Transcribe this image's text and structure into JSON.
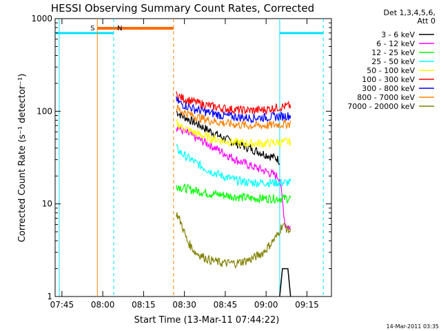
{
  "colors": {
    "background": "#ffffff",
    "axis": "#000000",
    "s_marker": "#ff8000",
    "n_marker": "#00e0ff",
    "night_bar": "#00e0ff",
    "saa_bar": "#ff6a00"
  },
  "chart_data": {
    "type": "line",
    "title": "HESSI Observing Summary Count Rates, Corrected",
    "xlabel": "Start Time (13-Mar-11 07:44:22)",
    "ylabel": "Corrected Count Rate (s⁻¹ detector⁻¹)",
    "x_ticks": [
      "07:45",
      "08:00",
      "08:15",
      "08:30",
      "08:45",
      "09:00",
      "09:15"
    ],
    "y_ticks": [
      "1",
      "10",
      "100",
      "1000"
    ],
    "y_scale": "log",
    "ylim": [
      1,
      1000
    ],
    "xlim_minutes_from_0744": [
      -1.5,
      100
    ],
    "grid": false,
    "legend_position": "right",
    "legend_header": [
      "Det 1,3,4,5,6,",
      "Att 0"
    ],
    "footer_date": "14-Mar-2011 03:35",
    "markers": [
      {
        "label": "S",
        "time_min": 14,
        "color": "#ff8000",
        "style": "solid"
      },
      {
        "label": "N",
        "time_min": 20,
        "color": "#00e0ff",
        "style": "dashed"
      }
    ],
    "extra_lines": [
      {
        "time_min": 42,
        "color": "#ff8000",
        "style": "dashed"
      },
      {
        "time_min": 81,
        "color": "#00e0ff",
        "style": "solid"
      },
      {
        "time_min": 97,
        "color": "#00e0ff",
        "style": "dashed"
      },
      {
        "time_min": 0,
        "color": "#00e0ff",
        "style": "solid"
      }
    ],
    "night_bars": [
      [
        -1.5,
        20
      ],
      [
        81,
        97
      ]
    ],
    "saa_bar": [
      14,
      42
    ],
    "series": [
      {
        "name": "3 - 6 keV",
        "color": "#000000",
        "x": [
          43,
          45,
          50,
          55,
          60,
          65,
          70,
          75,
          80,
          81
        ],
        "y": [
          100,
          90,
          75,
          62,
          52,
          45,
          40,
          35,
          31,
          29
        ]
      },
      {
        "name": "6 - 12 keV",
        "color": "#ff00ff",
        "x": [
          43,
          45,
          50,
          55,
          60,
          65,
          70,
          75,
          80,
          81,
          83,
          85
        ],
        "y": [
          68,
          62,
          52,
          44,
          36,
          30,
          26,
          23,
          20,
          19,
          6,
          5.5
        ]
      },
      {
        "name": "12 - 25 keV",
        "color": "#00ff00",
        "x": [
          43,
          45,
          50,
          55,
          60,
          65,
          70,
          75,
          80,
          85
        ],
        "y": [
          16,
          15,
          14,
          13,
          12.5,
          12,
          11.5,
          11.5,
          11.5,
          11.5
        ]
      },
      {
        "name": "25 - 50 keV",
        "color": "#00ffff",
        "x": [
          43,
          45,
          50,
          55,
          60,
          65,
          70,
          75,
          80,
          85
        ],
        "y": [
          40,
          35,
          28,
          23,
          20,
          18,
          17,
          17,
          17,
          17
        ]
      },
      {
        "name": "50 - 100 keV",
        "color": "#ffff00",
        "x": [
          43,
          45,
          50,
          55,
          60,
          65,
          70,
          75,
          80,
          85
        ],
        "y": [
          75,
          68,
          58,
          52,
          48,
          46,
          45,
          45,
          46,
          47
        ]
      },
      {
        "name": "100 - 300 keV",
        "color": "#ff0000",
        "x": [
          43,
          45,
          50,
          55,
          60,
          65,
          70,
          75,
          80,
          85
        ],
        "y": [
          150,
          140,
          125,
          115,
          108,
          104,
          102,
          104,
          110,
          115
        ]
      },
      {
        "name": "300 - 800 keV",
        "color": "#0000ff",
        "x": [
          43,
          45,
          50,
          55,
          60,
          65,
          70,
          75,
          80,
          85
        ],
        "y": [
          130,
          120,
          105,
          97,
          90,
          87,
          85,
          86,
          88,
          90
        ]
      },
      {
        "name": "800 - 7000 keV",
        "color": "#ff8000",
        "x": [
          43,
          45,
          50,
          55,
          60,
          65,
          70,
          75,
          80,
          85
        ],
        "y": [
          110,
          100,
          88,
          80,
          75,
          72,
          70,
          70,
          72,
          74
        ]
      },
      {
        "name": "7000 - 20000 keV",
        "color": "#808000",
        "x": [
          43,
          45,
          47,
          50,
          55,
          60,
          65,
          70,
          75,
          80,
          82,
          85
        ],
        "y": [
          8,
          6,
          4,
          3,
          2.5,
          2.3,
          2.3,
          2.5,
          3,
          4.5,
          6,
          5
        ]
      }
    ],
    "extra_traces": [
      {
        "color": "#000000",
        "x": [
          81,
          82,
          83,
          84,
          85
        ],
        "y": [
          1,
          2,
          2,
          2,
          1
        ]
      }
    ]
  }
}
